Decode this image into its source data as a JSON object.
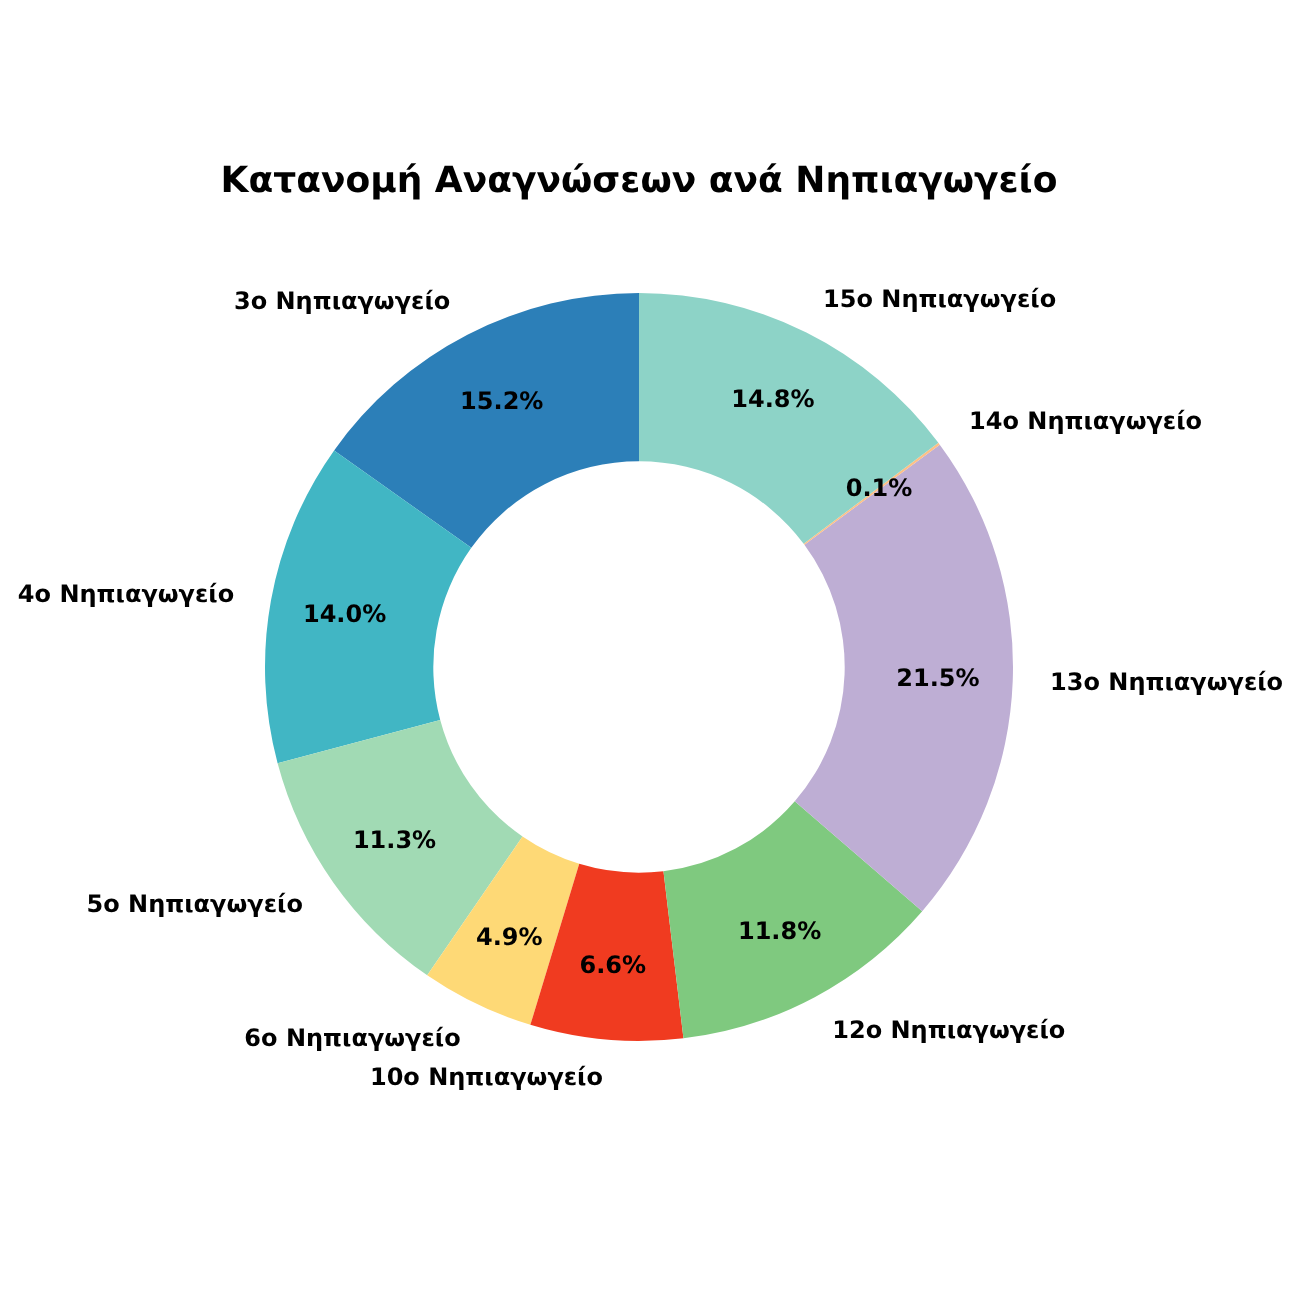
{
  "chart_data": {
    "type": "donut",
    "title": "Κατανομή Αναγνώσεων ανά Νηπιαγωγείο",
    "categories": [
      "3o Νηπιαγωγείο",
      "4o Νηπιαγωγείο",
      "5o Νηπιαγωγείο",
      "6o Νηπιαγωγείο",
      "10o Νηπιαγωγείο",
      "12o Νηπιαγωγείο",
      "13o Νηπιαγωγείο",
      "14o Νηπιαγωγείο",
      "15o Νηπιαγωγείο"
    ],
    "values": [
      15.2,
      14.0,
      11.3,
      4.9,
      6.6,
      11.8,
      21.5,
      0.1,
      14.8
    ],
    "colors": [
      "#2c7fb8",
      "#41b6c4",
      "#a1dab4",
      "#fed976",
      "#f03b20",
      "#7fc97f",
      "#beaed4",
      "#fdc086",
      "#8dd3c7"
    ],
    "value_labels": [
      "15.2%",
      "14.0%",
      "11.3%",
      "4.9%",
      "6.6%",
      "11.8%",
      "21.5%",
      "0.1%",
      "14.8%"
    ]
  }
}
